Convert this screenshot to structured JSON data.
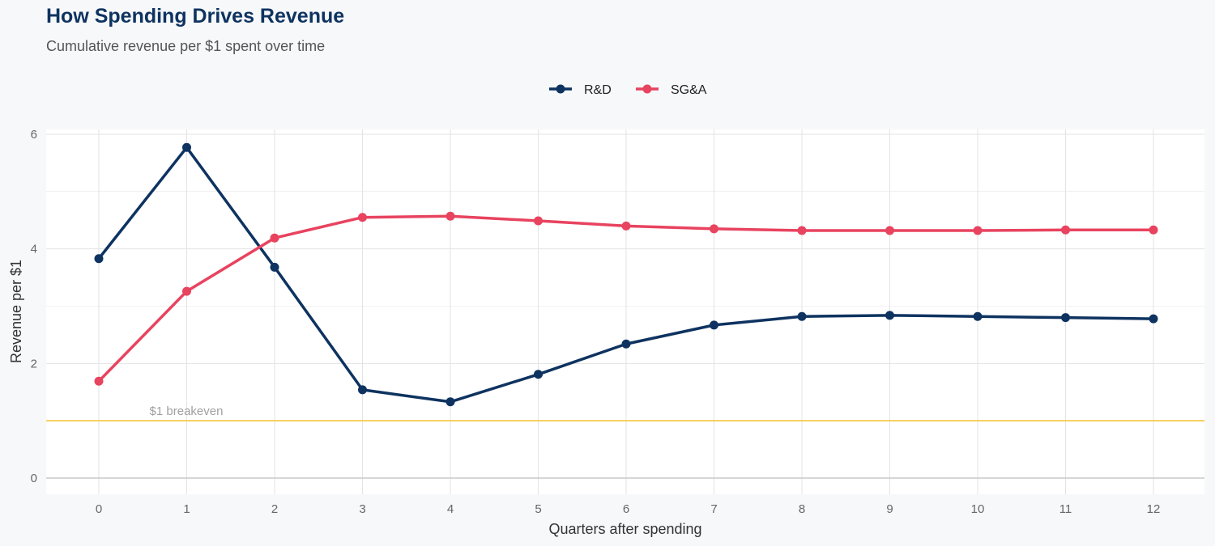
{
  "title": "How Spending Drives Revenue",
  "subtitle": "Cumulative revenue per $1 spent over time",
  "chart_data": {
    "type": "line",
    "title": "How Spending Drives Revenue",
    "subtitle": "Cumulative revenue per $1 spent over time",
    "xlabel": "Quarters after spending",
    "ylabel": "Revenue per $1",
    "x": [
      0,
      1,
      2,
      3,
      4,
      5,
      6,
      7,
      8,
      9,
      10,
      11,
      12
    ],
    "xlim": [
      -0.6,
      12.6
    ],
    "ylim": [
      0,
      6
    ],
    "xticks": [
      "0",
      "1",
      "2",
      "3",
      "4",
      "5",
      "6",
      "7",
      "8",
      "9",
      "10",
      "11",
      "12"
    ],
    "yticks": [
      "0",
      "2",
      "4",
      "6"
    ],
    "grid": true,
    "legend_position": "top",
    "series": [
      {
        "name": "R&D",
        "color": "#0e3360",
        "values": [
          3.83,
          5.77,
          3.68,
          1.54,
          1.33,
          1.81,
          2.34,
          2.67,
          2.82,
          2.84,
          2.82,
          2.8,
          2.78
        ]
      },
      {
        "name": "SG&A",
        "color": "#e8435f",
        "values": [
          1.69,
          3.26,
          4.19,
          4.55,
          4.57,
          4.49,
          4.4,
          4.35,
          4.32,
          4.32,
          4.32,
          4.33,
          4.33
        ]
      }
    ],
    "reference_line": {
      "y": 1,
      "label": "$1 breakeven",
      "color": "#f7ce5b"
    }
  }
}
